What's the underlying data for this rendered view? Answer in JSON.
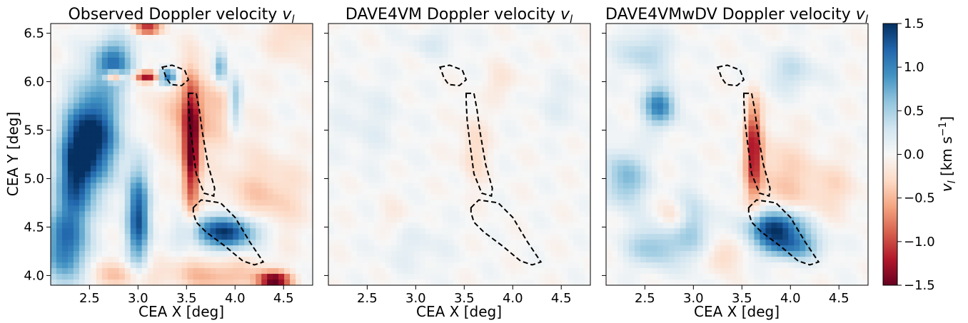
{
  "chart_data": [
    {
      "type": "heatmap",
      "title": "Observed Doppler velocity v_l",
      "title_main": "Observed Doppler velocity ",
      "title_var": "v",
      "title_sub": "l",
      "xlabel": "CEA X [deg]",
      "ylabel": "CEA Y [deg]",
      "xlim": [
        2.1,
        4.8
      ],
      "ylim": [
        3.9,
        6.6
      ],
      "xticks": [
        "2.5",
        "3.0",
        "3.5",
        "4.0",
        "4.5"
      ],
      "yticks": [
        "4.0",
        "4.5",
        "5.0",
        "5.5",
        "6.0",
        "6.5"
      ],
      "colormap": "RdBu",
      "clim": [
        -1.5,
        1.5
      ],
      "grid": false,
      "features": [
        {
          "x": 2.55,
          "y": 5.45,
          "value": 1.5,
          "sx": 0.18,
          "sy": 0.35
        },
        {
          "x": 2.35,
          "y": 5.05,
          "value": 1.2,
          "sx": 0.12,
          "sy": 0.35
        },
        {
          "x": 2.25,
          "y": 4.3,
          "value": 1.1,
          "sx": 0.15,
          "sy": 0.3
        },
        {
          "x": 2.75,
          "y": 6.2,
          "value": 1.0,
          "sx": 0.15,
          "sy": 0.18
        },
        {
          "x": 3.0,
          "y": 4.6,
          "value": 1.3,
          "sx": 0.08,
          "sy": 0.35
        },
        {
          "x": 3.55,
          "y": 5.3,
          "value": -1.5,
          "sx": 0.06,
          "sy": 0.45
        },
        {
          "x": 3.9,
          "y": 4.45,
          "value": 1.5,
          "sx": 0.25,
          "sy": 0.12
        },
        {
          "x": 3.3,
          "y": 6.05,
          "value": 1.4,
          "sx": 0.08,
          "sy": 0.06
        },
        {
          "x": 3.1,
          "y": 6.05,
          "value": -1.4,
          "sx": 0.1,
          "sy": 0.04
        },
        {
          "x": 2.75,
          "y": 6.05,
          "value": -1.3,
          "sx": 0.06,
          "sy": 0.04
        },
        {
          "x": 4.4,
          "y": 3.95,
          "value": -1.5,
          "sx": 0.12,
          "sy": 0.06
        },
        {
          "x": 3.1,
          "y": 6.55,
          "value": -1.2,
          "sx": 0.1,
          "sy": 0.04
        },
        {
          "x": 3.6,
          "y": 5.7,
          "value": -0.5,
          "sx": 0.3,
          "sy": 0.3
        },
        {
          "x": 4.3,
          "y": 4.8,
          "value": -0.4,
          "sx": 0.3,
          "sy": 0.3
        },
        {
          "x": 3.8,
          "y": 4.0,
          "value": -0.5,
          "sx": 0.35,
          "sy": 0.12
        },
        {
          "x": 2.8,
          "y": 4.0,
          "value": -0.4,
          "sx": 0.25,
          "sy": 0.1
        },
        {
          "x": 4.6,
          "y": 6.5,
          "value": -0.3,
          "sx": 0.2,
          "sy": 0.2
        },
        {
          "x": 4.0,
          "y": 5.8,
          "value": 0.7,
          "sx": 0.05,
          "sy": 0.2
        },
        {
          "x": 3.85,
          "y": 6.15,
          "value": 0.9,
          "sx": 0.05,
          "sy": 0.12
        }
      ]
    },
    {
      "type": "heatmap",
      "title": "DAVE4VM Doppler velocity v_l",
      "title_main": "DAVE4VM Doppler velocity ",
      "title_var": "v",
      "title_sub": "l",
      "xlabel": "CEA X [deg]",
      "xlim": [
        2.1,
        4.8
      ],
      "ylim": [
        3.9,
        6.6
      ],
      "xticks": [
        "2.5",
        "3.0",
        "3.5",
        "4.0",
        "4.5"
      ],
      "colormap": "RdBu",
      "clim": [
        -1.5,
        1.5
      ],
      "grid": false,
      "features": [
        {
          "x": 3.6,
          "y": 5.3,
          "value": -0.3,
          "sx": 0.1,
          "sy": 0.25
        },
        {
          "x": 3.2,
          "y": 6.4,
          "value": 0.2,
          "sx": 0.2,
          "sy": 0.1
        },
        {
          "x": 2.5,
          "y": 5.6,
          "value": 0.15,
          "sx": 0.25,
          "sy": 0.3
        },
        {
          "x": 4.5,
          "y": 5.8,
          "value": 0.15,
          "sx": 0.2,
          "sy": 0.2
        },
        {
          "x": 3.0,
          "y": 4.3,
          "value": 0.15,
          "sx": 0.25,
          "sy": 0.2
        },
        {
          "x": 3.9,
          "y": 6.0,
          "value": -0.2,
          "sx": 0.12,
          "sy": 0.12
        },
        {
          "x": 2.8,
          "y": 4.6,
          "value": -0.15,
          "sx": 0.12,
          "sy": 0.12
        }
      ]
    },
    {
      "type": "heatmap",
      "title": "DAVE4VMwDV Doppler velocity v_l",
      "title_main": "DAVE4VMwDV Doppler velocity ",
      "title_var": "v",
      "title_sub": "l",
      "xlabel": "CEA X [deg]",
      "xlim": [
        2.1,
        4.8
      ],
      "ylim": [
        3.9,
        6.6
      ],
      "xticks": [
        "2.5",
        "3.0",
        "3.5",
        "4.0",
        "4.5"
      ],
      "colormap": "RdBu",
      "clim": [
        -1.5,
        1.5
      ],
      "grid": false,
      "features": [
        {
          "x": 3.62,
          "y": 5.3,
          "value": -1.2,
          "sx": 0.06,
          "sy": 0.35
        },
        {
          "x": 3.85,
          "y": 4.5,
          "value": 1.5,
          "sx": 0.2,
          "sy": 0.12
        },
        {
          "x": 4.0,
          "y": 4.3,
          "value": 0.9,
          "sx": 0.22,
          "sy": 0.1
        },
        {
          "x": 2.65,
          "y": 5.75,
          "value": 1.0,
          "sx": 0.12,
          "sy": 0.15
        },
        {
          "x": 2.3,
          "y": 5.0,
          "value": 0.7,
          "sx": 0.15,
          "sy": 0.2
        },
        {
          "x": 2.6,
          "y": 4.3,
          "value": 0.6,
          "sx": 0.2,
          "sy": 0.15
        },
        {
          "x": 3.0,
          "y": 4.5,
          "value": 0.5,
          "sx": 0.12,
          "sy": 0.25
        },
        {
          "x": 2.5,
          "y": 6.3,
          "value": 0.45,
          "sx": 0.2,
          "sy": 0.15
        },
        {
          "x": 3.9,
          "y": 5.0,
          "value": -0.4,
          "sx": 0.2,
          "sy": 0.3
        },
        {
          "x": 4.4,
          "y": 4.9,
          "value": -0.3,
          "sx": 0.2,
          "sy": 0.2
        },
        {
          "x": 3.3,
          "y": 4.2,
          "value": -0.35,
          "sx": 0.12,
          "sy": 0.12
        },
        {
          "x": 2.8,
          "y": 4.6,
          "value": -0.3,
          "sx": 0.1,
          "sy": 0.1
        },
        {
          "x": 4.0,
          "y": 6.1,
          "value": 0.35,
          "sx": 0.2,
          "sy": 0.15
        }
      ]
    }
  ],
  "contours": [
    {
      "name": "upper",
      "points": [
        [
          3.25,
          6.15
        ],
        [
          3.35,
          6.17
        ],
        [
          3.48,
          6.12
        ],
        [
          3.52,
          6.02
        ],
        [
          3.45,
          5.96
        ],
        [
          3.34,
          5.97
        ],
        [
          3.29,
          6.04
        ],
        [
          3.27,
          6.1
        ]
      ]
    },
    {
      "name": "middle",
      "points": [
        [
          3.52,
          5.88
        ],
        [
          3.6,
          5.88
        ],
        [
          3.63,
          5.72
        ],
        [
          3.66,
          5.5
        ],
        [
          3.72,
          5.15
        ],
        [
          3.79,
          4.9
        ],
        [
          3.78,
          4.82
        ],
        [
          3.68,
          4.85
        ],
        [
          3.6,
          5.05
        ],
        [
          3.56,
          5.35
        ],
        [
          3.53,
          5.6
        ],
        [
          3.52,
          5.8
        ]
      ]
    },
    {
      "name": "lower",
      "points": [
        [
          3.57,
          4.7
        ],
        [
          3.65,
          4.78
        ],
        [
          3.85,
          4.75
        ],
        [
          4.0,
          4.6
        ],
        [
          4.15,
          4.35
        ],
        [
          4.29,
          4.14
        ],
        [
          4.2,
          4.11
        ],
        [
          4.08,
          4.15
        ],
        [
          3.9,
          4.3
        ],
        [
          3.7,
          4.45
        ],
        [
          3.6,
          4.55
        ],
        [
          3.57,
          4.65
        ]
      ]
    }
  ],
  "colorbar": {
    "ticks": [
      "1.5",
      "1.0",
      "0.5",
      "0.0",
      "−0.5",
      "−1.0",
      "−1.5"
    ],
    "tick_values": [
      1.5,
      1.0,
      0.5,
      0.0,
      -0.5,
      -1.0,
      -1.5
    ],
    "label_var": "v",
    "label_sub": "l",
    "label_units": " [km s",
    "label_exp": "−1",
    "label_close": "]"
  }
}
